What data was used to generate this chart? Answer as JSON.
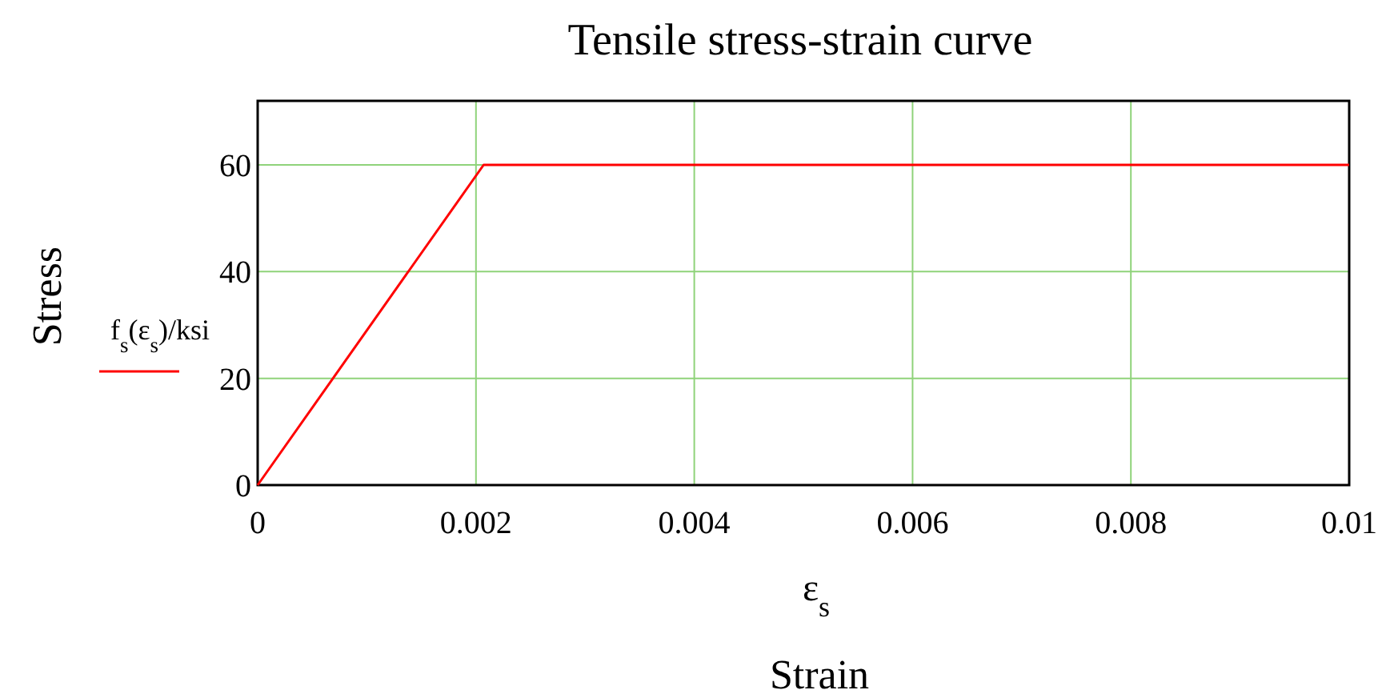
{
  "chart_data": {
    "type": "line",
    "title": "Tensile stress-strain curve",
    "xlabel": "Strain",
    "ylabel": "Stress",
    "annotations": [
      "ε$_{s}$"
    ],
    "x": [
      0,
      0.00207,
      0.01
    ],
    "series": [
      {
        "name": "f$_{s}$(ε$_{s}$)/ksi",
        "color": "#ff0000",
        "values": [
          0,
          60,
          60
        ]
      }
    ],
    "xlim": [
      0,
      0.01
    ],
    "xticks": [
      0,
      0.002,
      0.004,
      0.006,
      0.008,
      0.01
    ],
    "ylim": [
      0,
      72
    ],
    "yticks": [
      0,
      20,
      40,
      60
    ],
    "grid": true,
    "legend": "left",
    "marker": "none",
    "line_style": "solid"
  }
}
